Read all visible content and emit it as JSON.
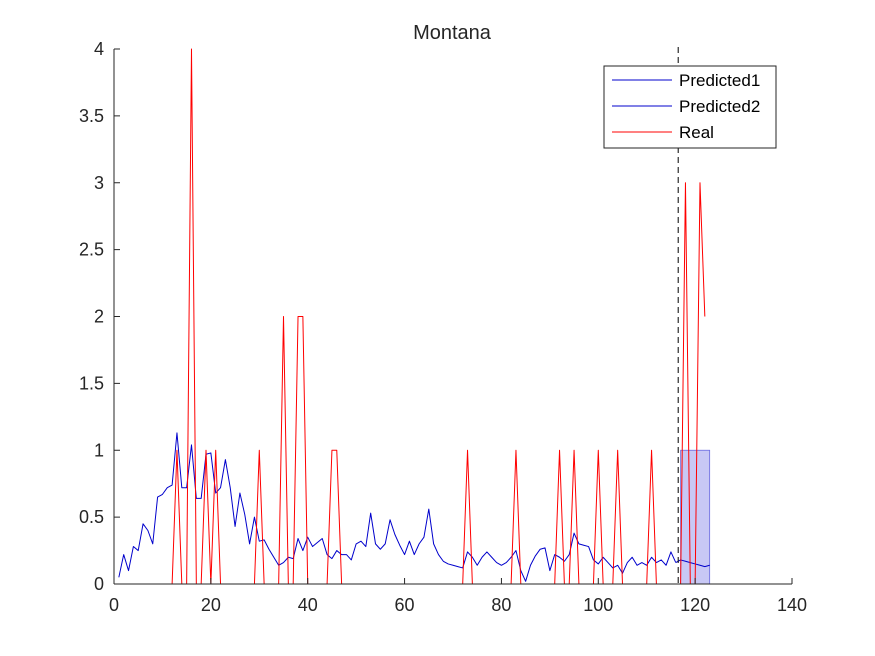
{
  "chart_data": {
    "type": "line",
    "title": "Montana",
    "xlabel": "",
    "ylabel": "",
    "xlim": [
      0,
      140
    ],
    "ylim": [
      0,
      4
    ],
    "xticks": [
      0,
      20,
      40,
      60,
      80,
      100,
      120,
      140
    ],
    "xtick_labels": [
      "0",
      "20",
      "40",
      "60",
      "80",
      "100",
      "120",
      "140"
    ],
    "yticks": [
      0,
      0.5,
      1,
      1.5,
      2,
      2.5,
      3,
      3.5,
      4
    ],
    "ytick_labels": [
      "0",
      "0.5",
      "1",
      "1.5",
      "2",
      "2.5",
      "3",
      "3.5",
      "4"
    ],
    "grid": false,
    "legend_position": "top-right",
    "vertical_line_x": 116.5,
    "shaded_band": {
      "x": [
        117,
        123
      ],
      "y": [
        0,
        1
      ],
      "color": "#c8c8f5"
    },
    "series": [
      {
        "name": "Predicted1",
        "color": "#0000cc",
        "x": [
          1,
          2,
          3,
          4,
          5,
          6,
          7,
          8,
          9,
          10,
          11,
          12,
          13,
          14,
          15,
          16,
          17,
          18,
          19,
          20,
          21,
          22,
          23,
          24,
          25,
          26,
          27,
          28,
          29,
          30,
          31,
          32,
          33,
          34,
          35,
          36,
          37,
          38,
          39,
          40,
          41,
          42,
          43,
          44,
          45,
          46,
          47,
          48,
          49,
          50,
          51,
          52,
          53,
          54,
          55,
          56,
          57,
          58,
          59,
          60,
          61,
          62,
          63,
          64,
          65,
          66,
          67,
          68,
          69,
          70,
          71,
          72,
          73,
          74,
          75,
          76,
          77,
          78,
          79,
          80,
          81,
          82,
          83,
          84,
          85,
          86,
          87,
          88,
          89,
          90,
          91,
          92,
          93,
          94,
          95,
          96,
          97,
          98,
          99,
          100,
          101,
          102,
          103,
          104,
          105,
          106,
          107,
          108,
          109,
          110,
          111,
          112,
          113,
          114,
          115,
          116
        ],
        "y": [
          0.05,
          0.22,
          0.1,
          0.28,
          0.25,
          0.45,
          0.4,
          0.3,
          0.65,
          0.67,
          0.72,
          0.74,
          1.13,
          0.72,
          0.72,
          1.04,
          0.64,
          0.64,
          0.97,
          0.98,
          0.68,
          0.72,
          0.93,
          0.72,
          0.43,
          0.68,
          0.52,
          0.3,
          0.5,
          0.32,
          0.33,
          0.26,
          0.2,
          0.14,
          0.16,
          0.2,
          0.19,
          0.34,
          0.25,
          0.35,
          0.28,
          0.31,
          0.34,
          0.22,
          0.19,
          0.25,
          0.22,
          0.22,
          0.18,
          0.3,
          0.32,
          0.28,
          0.53,
          0.3,
          0.26,
          0.3,
          0.48,
          0.37,
          0.29,
          0.22,
          0.32,
          0.22,
          0.3,
          0.35,
          0.56,
          0.3,
          0.22,
          0.17,
          0.15,
          0.14,
          0.13,
          0.12,
          0.24,
          0.2,
          0.14,
          0.2,
          0.24,
          0.2,
          0.16,
          0.14,
          0.16,
          0.2,
          0.25,
          0.1,
          0.02,
          0.14,
          0.21,
          0.26,
          0.27,
          0.1,
          0.22,
          0.2,
          0.17,
          0.22,
          0.38,
          0.3,
          0.29,
          0.28,
          0.18,
          0.15,
          0.2,
          0.16,
          0.12,
          0.14,
          0.08,
          0.16,
          0.2,
          0.14,
          0.16,
          0.14,
          0.2,
          0.16,
          0.18,
          0.14,
          0.24,
          0.16
        ]
      },
      {
        "name": "Predicted2",
        "color": "#0000cc",
        "x": [
          116,
          117,
          118,
          119,
          120,
          121,
          122,
          123
        ],
        "y": [
          0.16,
          0.18,
          0.17,
          0.16,
          0.15,
          0.14,
          0.13,
          0.14
        ]
      },
      {
        "name": "Real",
        "color": "#ff0000",
        "x": [
          1,
          2,
          3,
          4,
          5,
          6,
          7,
          8,
          9,
          10,
          11,
          12,
          13,
          14,
          15,
          16,
          17,
          18,
          19,
          20,
          21,
          22,
          23,
          24,
          25,
          26,
          27,
          28,
          29,
          30,
          31,
          32,
          33,
          34,
          35,
          36,
          37,
          38,
          39,
          40,
          41,
          42,
          43,
          44,
          45,
          46,
          47,
          48,
          49,
          50,
          51,
          52,
          53,
          54,
          55,
          56,
          57,
          58,
          59,
          60,
          61,
          62,
          63,
          64,
          65,
          66,
          67,
          68,
          69,
          70,
          71,
          72,
          73,
          74,
          75,
          76,
          77,
          78,
          79,
          80,
          81,
          82,
          83,
          84,
          85,
          86,
          87,
          88,
          89,
          90,
          91,
          92,
          93,
          94,
          95,
          96,
          97,
          98,
          99,
          100,
          101,
          102,
          103,
          104,
          105,
          106,
          107,
          108,
          109,
          110,
          111,
          112,
          113,
          114,
          115,
          116,
          117,
          118,
          119,
          120,
          121,
          122
        ],
        "y": [
          0,
          0,
          0,
          0,
          0,
          0,
          0,
          0,
          0,
          0,
          0,
          0,
          1,
          0,
          0,
          4,
          0,
          0,
          1,
          0,
          1,
          0,
          0,
          0,
          0,
          0,
          0,
          0,
          0,
          1,
          0,
          0,
          0,
          0,
          2,
          0,
          0,
          2,
          2,
          0,
          0,
          0,
          0,
          0,
          1,
          1,
          0,
          0,
          0,
          0,
          0,
          0,
          0,
          0,
          0,
          0,
          0,
          0,
          0,
          0,
          0,
          0,
          0,
          0,
          0,
          0,
          0,
          0,
          0,
          0,
          0,
          0,
          1,
          0,
          0,
          0,
          0,
          0,
          0,
          0,
          0,
          0,
          1,
          0,
          0,
          0,
          0,
          0,
          0,
          0,
          0,
          1,
          0,
          0,
          1,
          0,
          0,
          0,
          0,
          1,
          0,
          0,
          0,
          1,
          0,
          0,
          0,
          0,
          0,
          0,
          1,
          0,
          0,
          0,
          0,
          0,
          0,
          3,
          0,
          0,
          3,
          2
        ]
      }
    ]
  }
}
